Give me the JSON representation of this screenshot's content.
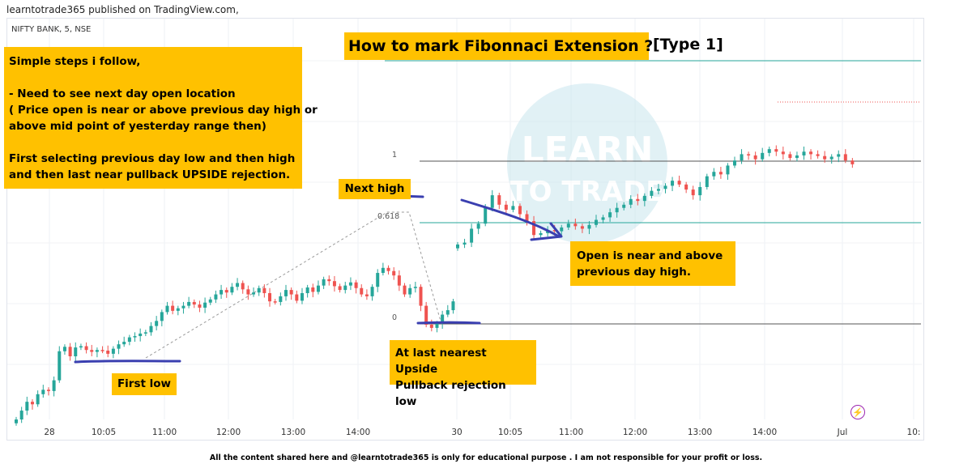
{
  "publisher": "learntotrade365 published on TradingView.com,",
  "symbol": "NIFTY BANK, 5, NSE",
  "title": "How to mark Fibonnaci Extension ?",
  "type_label": "[Type  1]",
  "steps": [
    "Simple steps i follow,",
    "",
    "- Need to see next day open location",
    "( Price open is near or above previous day high or",
    "above mid point of yesterday range then)",
    "",
    "First selecting previous day low and then high",
    "and then last near pullback UPSIDE rejection."
  ],
  "next_high": "Next high",
  "open_note": [
    "Open is near and above",
    "previous day high."
  ],
  "pullback_note": [
    "At last nearest Upside",
    "Pullback rejection low"
  ],
  "first_low": "First low",
  "disclaimer": "All the content shared here and @learntotrade365 is only for educational purpose . I am not responsible for your profit or loss.",
  "watermark_text": "LEARN TO TRADE",
  "colors": {
    "up": "#26a69a",
    "down": "#ef5350",
    "highlight": "#ffc100",
    "annotation": "#3a3fb0",
    "fib_line": "#555555",
    "fib_target": "#26a69a"
  },
  "chart_data": {
    "type": "candlestick",
    "x_ticks": [
      "28",
      "10:05",
      "11:00",
      "12:00",
      "13:00",
      "14:00",
      "30",
      "10:05",
      "11:00",
      "12:00",
      "13:00",
      "14:00",
      "Jul",
      "10:"
    ],
    "fib_levels": [
      {
        "label": "1",
        "ratio": 1
      },
      {
        "label": "0.618",
        "ratio": 0.618
      },
      {
        "label": "0",
        "ratio": 0
      }
    ],
    "day1_closes": [
      0,
      14,
      28,
      24,
      40,
      47,
      45,
      62,
      108,
      115,
      100,
      114,
      116,
      110,
      107,
      110,
      109,
      104,
      112,
      119,
      123,
      130,
      132,
      136,
      138,
      148,
      156,
      170,
      180,
      172,
      176,
      180,
      186,
      182,
      177,
      185,
      190,
      198,
      205,
      201,
      210,
      216,
      206,
      198,
      201,
      208,
      200,
      187,
      186,
      195,
      205,
      198,
      188,
      200,
      209,
      202,
      212,
      222,
      219,
      211,
      205,
      212,
      217,
      208,
      198,
      195,
      210,
      232,
      240,
      235,
      228,
      212,
      198,
      208,
      210,
      180,
      150,
      145,
      152,
      166,
      173,
      187
    ],
    "day2_closes": [
      277,
      280,
      302,
      310,
      335,
      355,
      340,
      332,
      338,
      325,
      314,
      292,
      295,
      300,
      298,
      304,
      310,
      306,
      302,
      308,
      316,
      320,
      328,
      335,
      340,
      349,
      346,
      354,
      362,
      365,
      370,
      378,
      372,
      364,
      355,
      368,
      385,
      392,
      388,
      402,
      410,
      420,
      418,
      412,
      422,
      428,
      424,
      420,
      414,
      418,
      424,
      420,
      417,
      412,
      416,
      420,
      410,
      404
    ]
  }
}
